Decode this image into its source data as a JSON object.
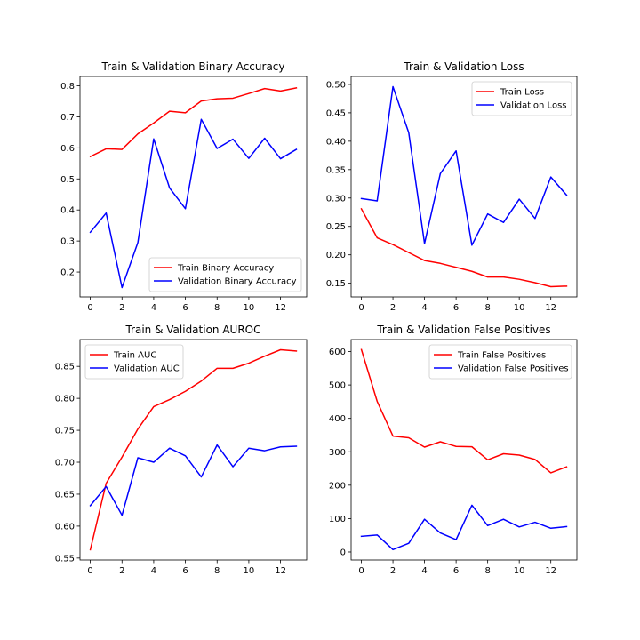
{
  "chart_data": [
    {
      "type": "line",
      "title": "Train & Validation Binary Accuracy",
      "xlabel": "",
      "ylabel": "",
      "x": [
        0,
        1,
        2,
        3,
        4,
        5,
        6,
        7,
        8,
        9,
        10,
        11,
        12,
        13
      ],
      "xlim": [
        -0.65,
        13.65
      ],
      "ylim": [
        0.12,
        0.83
      ],
      "xticks": [
        0,
        2,
        4,
        6,
        8,
        10,
        12
      ],
      "yticks": [
        0.2,
        0.3,
        0.4,
        0.5,
        0.6,
        0.7,
        0.8
      ],
      "ytick_decimals": 1,
      "legend_position": "lower-right",
      "grid": false,
      "series": [
        {
          "name": "Train Binary Accuracy",
          "color": "#ff0000",
          "values": [
            0.572,
            0.597,
            0.595,
            0.645,
            0.68,
            0.718,
            0.713,
            0.751,
            0.758,
            0.76,
            0.775,
            0.791,
            0.783,
            0.793
          ]
        },
        {
          "name": "Validation Binary Accuracy",
          "color": "#0000ff",
          "values": [
            0.328,
            0.39,
            0.15,
            0.295,
            0.629,
            0.471,
            0.404,
            0.692,
            0.598,
            0.628,
            0.566,
            0.631,
            0.565,
            0.595
          ]
        }
      ]
    },
    {
      "type": "line",
      "title": "Train & Validation Loss",
      "xlabel": "",
      "ylabel": "",
      "x": [
        0,
        1,
        2,
        3,
        4,
        5,
        6,
        7,
        8,
        9,
        10,
        11,
        12,
        13
      ],
      "xlim": [
        -0.65,
        13.65
      ],
      "ylim": [
        0.126,
        0.514
      ],
      "xticks": [
        0,
        2,
        4,
        6,
        8,
        10,
        12
      ],
      "yticks": [
        0.15,
        0.2,
        0.25,
        0.3,
        0.35,
        0.4,
        0.45,
        0.5
      ],
      "ytick_decimals": 2,
      "legend_position": "upper-right",
      "grid": false,
      "series": [
        {
          "name": "Train Loss",
          "color": "#ff0000",
          "values": [
            0.281,
            0.23,
            0.218,
            0.204,
            0.19,
            0.185,
            0.178,
            0.171,
            0.161,
            0.161,
            0.157,
            0.151,
            0.144,
            0.145
          ]
        },
        {
          "name": "Validation Loss",
          "color": "#0000ff",
          "values": [
            0.299,
            0.295,
            0.496,
            0.415,
            0.22,
            0.343,
            0.383,
            0.217,
            0.272,
            0.257,
            0.298,
            0.264,
            0.337,
            0.305
          ]
        }
      ]
    },
    {
      "type": "line",
      "title": "Train & Validation AUROC",
      "xlabel": "",
      "ylabel": "",
      "x": [
        0,
        1,
        2,
        3,
        4,
        5,
        6,
        7,
        8,
        9,
        10,
        11,
        12,
        13
      ],
      "xlim": [
        -0.65,
        13.65
      ],
      "ylim": [
        0.547,
        0.892
      ],
      "xticks": [
        0,
        2,
        4,
        6,
        8,
        10,
        12
      ],
      "yticks": [
        0.55,
        0.6,
        0.65,
        0.7,
        0.75,
        0.8,
        0.85
      ],
      "ytick_decimals": 2,
      "legend_position": "upper-left",
      "grid": false,
      "series": [
        {
          "name": "Train AUC",
          "color": "#ff0000",
          "values": [
            0.563,
            0.667,
            0.708,
            0.752,
            0.787,
            0.798,
            0.811,
            0.827,
            0.847,
            0.847,
            0.855,
            0.866,
            0.876,
            0.874
          ]
        },
        {
          "name": "Validation AUC",
          "color": "#0000ff",
          "values": [
            0.632,
            0.662,
            0.617,
            0.707,
            0.7,
            0.722,
            0.71,
            0.677,
            0.727,
            0.693,
            0.722,
            0.718,
            0.724,
            0.725
          ]
        }
      ]
    },
    {
      "type": "line",
      "title": "Train & Validation False Positives",
      "xlabel": "",
      "ylabel": "",
      "x": [
        0,
        1,
        2,
        3,
        4,
        5,
        6,
        7,
        8,
        9,
        10,
        11,
        12,
        13
      ],
      "xlim": [
        -0.65,
        13.65
      ],
      "ylim": [
        -24,
        636
      ],
      "xticks": [
        0,
        2,
        4,
        6,
        8,
        10,
        12
      ],
      "yticks": [
        0,
        100,
        200,
        300,
        400,
        500,
        600
      ],
      "ytick_decimals": 0,
      "legend_position": "upper-right",
      "grid": false,
      "series": [
        {
          "name": "Train False Positives",
          "color": "#ff0000",
          "values": [
            606,
            451,
            347,
            342,
            314,
            330,
            316,
            315,
            276,
            294,
            290,
            277,
            237,
            255
          ]
        },
        {
          "name": "Validation False Positives",
          "color": "#0000ff",
          "values": [
            47,
            51,
            7,
            26,
            98,
            57,
            37,
            140,
            79,
            98,
            75,
            89,
            71,
            76
          ]
        }
      ]
    }
  ]
}
